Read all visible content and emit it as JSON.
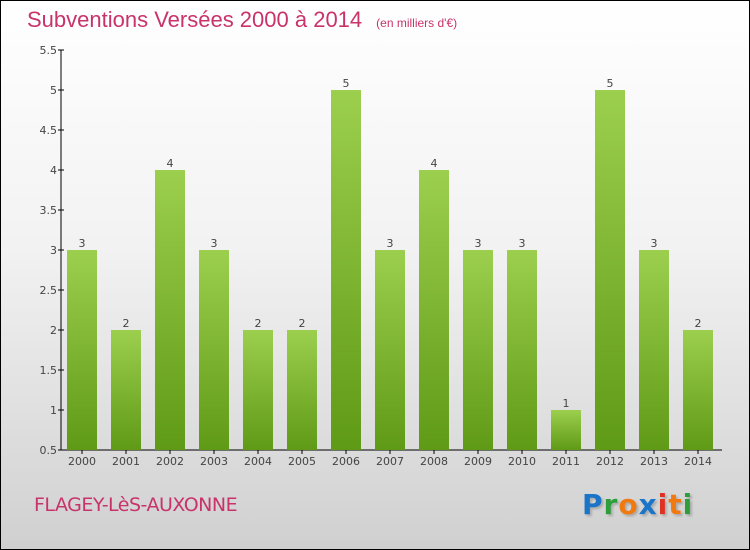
{
  "chart_data": {
    "type": "bar",
    "title": "Subventions Versées 2000 à 2014",
    "unit_label": "(en milliers d'€)",
    "categories": [
      "2000",
      "2001",
      "2002",
      "2003",
      "2004",
      "2005",
      "2006",
      "2007",
      "2008",
      "2009",
      "2010",
      "2011",
      "2012",
      "2013",
      "2014"
    ],
    "values": [
      3,
      2,
      4,
      3,
      2,
      2,
      5,
      3,
      4,
      3,
      3,
      1,
      5,
      3,
      2
    ],
    "ylim": [
      0.5,
      5.5
    ],
    "yticks": [
      "0.5",
      "1",
      "1.5",
      "2",
      "2.5",
      "3",
      "3.5",
      "4",
      "4.5",
      "5",
      "5.5"
    ],
    "xlabel": "",
    "ylabel": "",
    "bar_color_top": "#9ccf4e",
    "bar_color_bottom": "#5f9a16",
    "legend": "none",
    "grid": false
  },
  "commune": "FLAGEY-LèS-AUXONNE",
  "logo": {
    "text": "Proxiti",
    "colors": [
      "#1a74c8",
      "#2e9e3a",
      "#f07a10",
      "#1a74c8",
      "#e03020",
      "#f07a10",
      "#2e9e3a"
    ]
  }
}
